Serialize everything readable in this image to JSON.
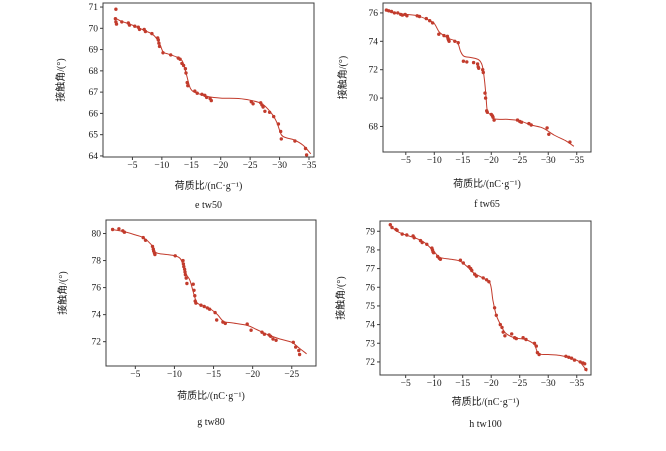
{
  "figure": {
    "accent_color": "#c23b2c",
    "axis_color": "#3c3c3c",
    "background": "#ffffff",
    "xlabel": "荷质比/(nC·g⁻¹)",
    "ylabel": "接触角/(°)"
  },
  "chart_data": [
    {
      "type": "scatter",
      "caption": "e  tw50",
      "xlabel": "荷质比/(nC·g⁻¹)",
      "ylabel": "接触角/(°)",
      "x_ticks": [
        -5,
        -10,
        -15,
        -20,
        -25,
        -30,
        -35
      ],
      "y_ticks": [
        71,
        70,
        69,
        68,
        67,
        66,
        65,
        64
      ],
      "x_range": [
        0,
        -35.85
      ],
      "y_range": [
        71.19,
        63.95
      ],
      "points": [
        [
          -2.2,
          70.9
        ],
        [
          -2.1,
          70.45
        ],
        [
          -2.2,
          70.3
        ],
        [
          -2.3,
          70.2
        ],
        [
          -3.2,
          70.3
        ],
        [
          -4.3,
          70.25
        ],
        [
          -4.5,
          70.15
        ],
        [
          -5.4,
          70.1
        ],
        [
          -6.0,
          70.05
        ],
        [
          -6.2,
          69.95
        ],
        [
          -7.0,
          69.95
        ],
        [
          -7.2,
          69.85
        ],
        [
          -8.3,
          69.75
        ],
        [
          -9.3,
          69.55
        ],
        [
          -9.4,
          69.45
        ],
        [
          -9.5,
          69.3
        ],
        [
          -9.6,
          69.15
        ],
        [
          -10.2,
          68.85
        ],
        [
          -11.5,
          68.75
        ],
        [
          -12.8,
          68.6
        ],
        [
          -13.1,
          68.55
        ],
        [
          -13.4,
          68.35
        ],
        [
          -13.7,
          68.25
        ],
        [
          -14.0,
          68.1
        ],
        [
          -14.1,
          67.9
        ],
        [
          -14.3,
          67.45
        ],
        [
          -14.4,
          67.3
        ],
        [
          -15.6,
          67.05
        ],
        [
          -16.0,
          66.95
        ],
        [
          -16.8,
          66.9
        ],
        [
          -17.3,
          66.85
        ],
        [
          -17.6,
          66.75
        ],
        [
          -18.2,
          66.7
        ],
        [
          -18.4,
          66.6
        ],
        [
          -25.2,
          66.55
        ],
        [
          -25.5,
          66.45
        ],
        [
          -26.8,
          66.5
        ],
        [
          -27.0,
          66.4
        ],
        [
          -27.2,
          66.3
        ],
        [
          -27.5,
          66.1
        ],
        [
          -28.3,
          66.05
        ],
        [
          -29.0,
          65.85
        ],
        [
          -29.8,
          65.5
        ],
        [
          -30.2,
          65.15
        ],
        [
          -30.3,
          64.8
        ],
        [
          -32.6,
          64.7
        ],
        [
          -34.4,
          64.35
        ],
        [
          -34.6,
          64.05
        ]
      ],
      "trend": [
        [
          -2,
          70.5
        ],
        [
          -3,
          70.35
        ],
        [
          -5,
          70.15
        ],
        [
          -7,
          69.9
        ],
        [
          -8.5,
          69.7
        ],
        [
          -9.5,
          69.35
        ],
        [
          -10.2,
          68.9
        ],
        [
          -11,
          68.8
        ],
        [
          -12.5,
          68.65
        ],
        [
          -13.5,
          68.45
        ],
        [
          -14.2,
          67.8
        ],
        [
          -14.9,
          67.15
        ],
        [
          -16,
          66.95
        ],
        [
          -18,
          66.78
        ],
        [
          -20,
          66.72
        ],
        [
          -23,
          66.7
        ],
        [
          -25,
          66.62
        ],
        [
          -27,
          66.45
        ],
        [
          -28.5,
          66.05
        ],
        [
          -29.5,
          65.6
        ],
        [
          -30.3,
          65.0
        ],
        [
          -31.2,
          64.85
        ],
        [
          -32.5,
          64.75
        ],
        [
          -34,
          64.5
        ],
        [
          -35.3,
          64.1
        ]
      ]
    },
    {
      "type": "scatter",
      "caption": "f  tw65",
      "xlabel": "荷质比/(nC·g⁻¹)",
      "ylabel": "接触角/(°)",
      "x_ticks": [
        -5,
        -10,
        -15,
        -20,
        -25,
        -30,
        -35
      ],
      "y_ticks": [
        76,
        74,
        72,
        70,
        68
      ],
      "x_range": [
        -1,
        -37.5
      ],
      "y_range": [
        76.7,
        66.2
      ],
      "points": [
        [
          -1.6,
          76.2
        ],
        [
          -2.0,
          76.15
        ],
        [
          -2.5,
          76.1
        ],
        [
          -3.0,
          76.0
        ],
        [
          -3.6,
          76.0
        ],
        [
          -4.1,
          75.9
        ],
        [
          -4.4,
          75.85
        ],
        [
          -4.9,
          75.9
        ],
        [
          -5.2,
          75.8
        ],
        [
          -7.0,
          75.8
        ],
        [
          -7.4,
          75.75
        ],
        [
          -8.6,
          75.6
        ],
        [
          -9.2,
          75.45
        ],
        [
          -9.7,
          75.3
        ],
        [
          -10.8,
          74.5
        ],
        [
          -11.7,
          74.4
        ],
        [
          -12.3,
          74.35
        ],
        [
          -12.4,
          74.2
        ],
        [
          -12.5,
          74.1
        ],
        [
          -12.6,
          74.0
        ],
        [
          -13.6,
          74.0
        ],
        [
          -14.2,
          73.9
        ],
        [
          -15.1,
          72.6
        ],
        [
          -15.7,
          72.55
        ],
        [
          -16.9,
          72.5
        ],
        [
          -17.6,
          72.4
        ],
        [
          -17.7,
          72.2
        ],
        [
          -17.8,
          72.1
        ],
        [
          -18.5,
          72.0
        ],
        [
          -18.6,
          71.8
        ],
        [
          -18.9,
          70.35
        ],
        [
          -19.0,
          70.0
        ],
        [
          -19.2,
          69.1
        ],
        [
          -19.3,
          69.0
        ],
        [
          -20.0,
          68.85
        ],
        [
          -20.2,
          68.75
        ],
        [
          -20.3,
          68.65
        ],
        [
          -20.5,
          68.45
        ],
        [
          -24.6,
          68.45
        ],
        [
          -25.0,
          68.35
        ],
        [
          -25.3,
          68.3
        ],
        [
          -26.6,
          68.2
        ],
        [
          -27.0,
          68.1
        ],
        [
          -29.8,
          67.9
        ],
        [
          -30.1,
          67.45
        ],
        [
          -33.8,
          66.9
        ]
      ],
      "trend": [
        [
          -1.6,
          76.15
        ],
        [
          -3,
          76.0
        ],
        [
          -5,
          75.9
        ],
        [
          -7,
          75.8
        ],
        [
          -9,
          75.5
        ],
        [
          -10,
          75.25
        ],
        [
          -10.8,
          74.7
        ],
        [
          -11.5,
          74.45
        ],
        [
          -12.5,
          74.2
        ],
        [
          -14,
          73.95
        ],
        [
          -14.6,
          73.3
        ],
        [
          -15.2,
          72.95
        ],
        [
          -16.5,
          72.85
        ],
        [
          -17.8,
          72.7
        ],
        [
          -18.4,
          72.3
        ],
        [
          -18.8,
          71.3
        ],
        [
          -19.1,
          70.0
        ],
        [
          -19.3,
          69.1
        ],
        [
          -19.8,
          68.85
        ],
        [
          -20.5,
          68.55
        ],
        [
          -21.5,
          68.5
        ],
        [
          -23,
          68.5
        ],
        [
          -25,
          68.4
        ],
        [
          -27,
          68.1
        ],
        [
          -29,
          67.9
        ],
        [
          -31,
          67.4
        ],
        [
          -33,
          67.0
        ],
        [
          -34.5,
          66.6
        ]
      ]
    },
    {
      "type": "scatter",
      "caption": "g  tw80",
      "xlabel": "荷质比/(nC·g⁻¹)",
      "ylabel": "接触角/(°)",
      "x_ticks": [
        -5,
        -10,
        -15,
        -20,
        -25
      ],
      "y_ticks": [
        80,
        78,
        76,
        74,
        72
      ],
      "x_range": [
        -1.25,
        -28.1
      ],
      "y_range": [
        81.0,
        70.2
      ],
      "points": [
        [
          -2.1,
          80.3
        ],
        [
          -2.9,
          80.35
        ],
        [
          -3.4,
          80.2
        ],
        [
          -3.6,
          80.1
        ],
        [
          -6.0,
          79.7
        ],
        [
          -6.3,
          79.5
        ],
        [
          -7.2,
          79.05
        ],
        [
          -7.3,
          78.85
        ],
        [
          -7.35,
          78.7
        ],
        [
          -7.45,
          78.55
        ],
        [
          -7.5,
          78.45
        ],
        [
          -10.1,
          78.35
        ],
        [
          -11.1,
          78.0
        ],
        [
          -11.15,
          77.75
        ],
        [
          -11.2,
          77.55
        ],
        [
          -11.3,
          77.35
        ],
        [
          -11.35,
          77.15
        ],
        [
          -11.4,
          76.95
        ],
        [
          -11.5,
          76.7
        ],
        [
          -11.6,
          76.3
        ],
        [
          -12.4,
          76.25
        ],
        [
          -12.5,
          75.8
        ],
        [
          -12.6,
          75.4
        ],
        [
          -12.65,
          75.0
        ],
        [
          -12.75,
          74.85
        ],
        [
          -13.4,
          74.7
        ],
        [
          -13.8,
          74.6
        ],
        [
          -14.2,
          74.5
        ],
        [
          -14.5,
          74.4
        ],
        [
          -15.2,
          74.15
        ],
        [
          -15.4,
          73.6
        ],
        [
          -16.2,
          73.45
        ],
        [
          -16.5,
          73.35
        ],
        [
          -19.3,
          73.3
        ],
        [
          -19.8,
          72.85
        ],
        [
          -21.2,
          72.7
        ],
        [
          -21.5,
          72.55
        ],
        [
          -22.1,
          72.5
        ],
        [
          -22.3,
          72.4
        ],
        [
          -22.6,
          72.2
        ],
        [
          -23.0,
          72.1
        ],
        [
          -25.2,
          71.95
        ],
        [
          -25.5,
          71.6
        ],
        [
          -25.9,
          71.35
        ],
        [
          -26.0,
          71.05
        ]
      ],
      "trend": [
        [
          -2,
          80.3
        ],
        [
          -3.5,
          80.15
        ],
        [
          -5,
          79.9
        ],
        [
          -6,
          79.7
        ],
        [
          -7,
          79.2
        ],
        [
          -7.6,
          78.6
        ],
        [
          -9,
          78.45
        ],
        [
          -10,
          78.35
        ],
        [
          -10.8,
          78.1
        ],
        [
          -11.5,
          77.0
        ],
        [
          -12,
          76.5
        ],
        [
          -12.7,
          75.1
        ],
        [
          -13.2,
          74.75
        ],
        [
          -14.5,
          74.45
        ],
        [
          -15.5,
          74.0
        ],
        [
          -16.3,
          73.5
        ],
        [
          -17.5,
          73.38
        ],
        [
          -19.3,
          73.2
        ],
        [
          -20.5,
          72.9
        ],
        [
          -22,
          72.5
        ],
        [
          -23.5,
          72.2
        ],
        [
          -25,
          71.95
        ],
        [
          -26,
          71.5
        ],
        [
          -26.9,
          71.1
        ]
      ]
    },
    {
      "type": "scatter",
      "caption": "h  tw100",
      "xlabel": "荷质比/(nC·g⁻¹)",
      "ylabel": "接触角/(°)",
      "x_ticks": [
        -5,
        -10,
        -15,
        -20,
        -25,
        -30,
        -35
      ],
      "y_ticks": [
        79,
        78,
        77,
        76,
        75,
        74,
        73,
        72
      ],
      "x_range": [
        -0.5,
        -37.5
      ],
      "y_range": [
        79.55,
        71.3
      ],
      "points": [
        [
          -2.3,
          79.35
        ],
        [
          -2.6,
          79.2
        ],
        [
          -3.3,
          79.1
        ],
        [
          -3.5,
          79.05
        ],
        [
          -4.4,
          78.85
        ],
        [
          -5.2,
          78.8
        ],
        [
          -6.3,
          78.75
        ],
        [
          -6.5,
          78.65
        ],
        [
          -7.6,
          78.5
        ],
        [
          -7.9,
          78.4
        ],
        [
          -8.7,
          78.3
        ],
        [
          -9.6,
          78.1
        ],
        [
          -9.7,
          78.0
        ],
        [
          -9.8,
          77.9
        ],
        [
          -9.9,
          77.85
        ],
        [
          -10.6,
          77.65
        ],
        [
          -10.9,
          77.55
        ],
        [
          -11.1,
          77.5
        ],
        [
          -14.6,
          77.45
        ],
        [
          -15.1,
          77.3
        ],
        [
          -16.1,
          77.1
        ],
        [
          -16.4,
          77.0
        ],
        [
          -16.6,
          76.9
        ],
        [
          -17.1,
          76.7
        ],
        [
          -17.4,
          76.6
        ],
        [
          -18.6,
          76.5
        ],
        [
          -19.2,
          76.4
        ],
        [
          -19.6,
          76.3
        ],
        [
          -20.6,
          74.9
        ],
        [
          -20.9,
          74.5
        ],
        [
          -21.6,
          74.0
        ],
        [
          -21.9,
          73.85
        ],
        [
          -22.1,
          73.6
        ],
        [
          -22.4,
          73.4
        ],
        [
          -23.6,
          73.5
        ],
        [
          -24.1,
          73.3
        ],
        [
          -24.4,
          73.25
        ],
        [
          -25.6,
          73.3
        ],
        [
          -26.1,
          73.2
        ],
        [
          -27.6,
          73.0
        ],
        [
          -27.9,
          72.85
        ],
        [
          -28.1,
          72.5
        ],
        [
          -28.4,
          72.4
        ],
        [
          -33.1,
          72.3
        ],
        [
          -33.6,
          72.25
        ],
        [
          -34.1,
          72.2
        ],
        [
          -34.6,
          72.1
        ],
        [
          -35.6,
          72.0
        ],
        [
          -36.1,
          71.95
        ],
        [
          -36.4,
          71.9
        ],
        [
          -36.6,
          71.6
        ]
      ],
      "trend": [
        [
          -2.3,
          79.3
        ],
        [
          -3.5,
          79.0
        ],
        [
          -5,
          78.8
        ],
        [
          -7,
          78.6
        ],
        [
          -8.5,
          78.35
        ],
        [
          -10,
          77.9
        ],
        [
          -11,
          77.6
        ],
        [
          -13,
          77.5
        ],
        [
          -14.5,
          77.4
        ],
        [
          -16,
          77.05
        ],
        [
          -17,
          76.75
        ],
        [
          -18.5,
          76.5
        ],
        [
          -19.8,
          76.2
        ],
        [
          -20.3,
          75.3
        ],
        [
          -20.9,
          74.5
        ],
        [
          -21.8,
          73.9
        ],
        [
          -22.5,
          73.55
        ],
        [
          -24,
          73.3
        ],
        [
          -26,
          73.2
        ],
        [
          -27.5,
          72.95
        ],
        [
          -28.3,
          72.45
        ],
        [
          -30,
          72.4
        ],
        [
          -32,
          72.35
        ],
        [
          -34,
          72.2
        ],
        [
          -35.5,
          72.0
        ],
        [
          -36.8,
          71.5
        ]
      ]
    }
  ]
}
